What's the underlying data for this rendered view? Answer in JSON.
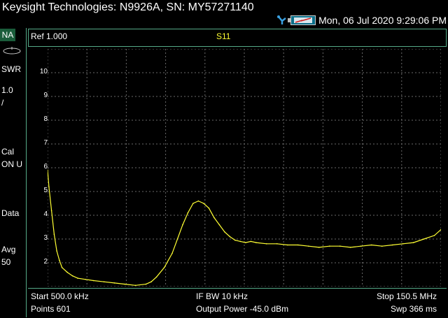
{
  "title_bar": {
    "title": "Keysight Technologies: N9926A, SN: MY57271140",
    "datetime": "Mon, 06 Jul 2020 9:29:06 PM"
  },
  "left_bar": {
    "mode": "NA",
    "format": "SWR",
    "scale_line1": "1.0",
    "scale_line2": "/",
    "cal_line1": "Cal",
    "cal_line2": "ON U",
    "data": "Data",
    "avg_line1": "Avg",
    "avg_line2": "50"
  },
  "plot": {
    "ref": "Ref 1.000",
    "trace": "S11",
    "trace_color": "#ffff33",
    "grid_color": "#6a6a6a",
    "y_labels": [
      "10",
      "9",
      "8",
      "7",
      "6",
      "5",
      "4",
      "3",
      "2"
    ]
  },
  "footer": {
    "start": "Start 500.0 kHz",
    "points": "Points 601",
    "if_bw": "IF BW 10 kHz",
    "output_power": "Output Power -45.0 dBm",
    "stop": "Stop 150.5 MHz",
    "sweep": "Swp 366 ms"
  },
  "chart_data": {
    "type": "line",
    "title": "S11",
    "xlabel": "",
    "ylabel": "",
    "xlim": [
      0.5,
      150.5
    ],
    "ylim": [
      1,
      11
    ],
    "x": [
      0.5,
      1,
      2,
      3,
      4,
      5,
      6,
      8,
      10,
      12,
      15,
      18,
      22,
      26,
      30,
      34,
      38,
      40,
      42,
      45,
      48,
      50,
      52,
      54,
      56,
      58,
      60,
      62,
      64,
      66,
      68,
      70,
      72,
      74,
      76,
      78,
      80,
      84,
      88,
      92,
      96,
      100,
      104,
      108,
      112,
      116,
      120,
      124,
      128,
      132,
      136,
      140,
      144,
      148,
      150.5
    ],
    "series": [
      {
        "values": [
          5.9,
          5.2,
          4.2,
          3.2,
          2.5,
          2.1,
          1.8,
          1.6,
          1.45,
          1.35,
          1.3,
          1.25,
          1.2,
          1.15,
          1.1,
          1.05,
          1.1,
          1.2,
          1.4,
          1.8,
          2.4,
          3.0,
          3.6,
          4.1,
          4.5,
          4.6,
          4.5,
          4.3,
          3.9,
          3.6,
          3.3,
          3.1,
          2.95,
          2.9,
          2.85,
          2.9,
          2.85,
          2.8,
          2.8,
          2.75,
          2.75,
          2.7,
          2.65,
          2.7,
          2.7,
          2.65,
          2.7,
          2.75,
          2.7,
          2.75,
          2.8,
          2.85,
          3.0,
          3.15,
          3.4
        ]
      }
    ]
  }
}
